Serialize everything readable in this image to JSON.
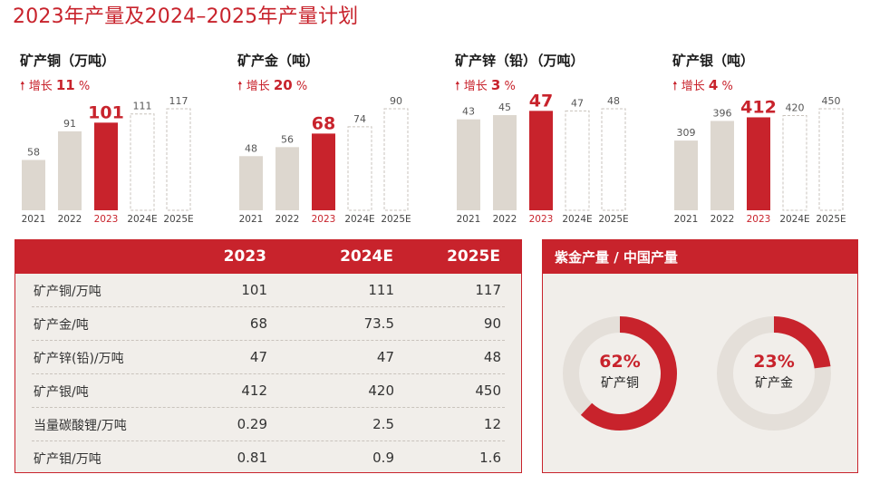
{
  "page": {
    "title": "2023年产量及2024–2025年产量计划"
  },
  "growth_prefix": "增长",
  "colors": {
    "accent": "#c8232c",
    "history_bar": "#ddd7cf",
    "donut_track": "#e4dfd9",
    "panel_bg": "#f1eeea"
  },
  "chart_data": [
    {
      "type": "bar",
      "title": "矿产铜（万吨）",
      "growth": "11",
      "growth_unit": "%",
      "categories": [
        "2021",
        "2022",
        "2023",
        "2024E",
        "2025E"
      ],
      "values": [
        58,
        91,
        101,
        111,
        117
      ],
      "labels": [
        "58",
        "91",
        "101",
        "111",
        "117"
      ],
      "highlight_index": 2,
      "forecast_from": 3
    },
    {
      "type": "bar",
      "title": "矿产金（吨）",
      "growth": "20",
      "growth_unit": "%",
      "categories": [
        "2021",
        "2022",
        "2023",
        "2024E",
        "2025E"
      ],
      "values": [
        48,
        56,
        68,
        74,
        90
      ],
      "labels": [
        "48",
        "56",
        "68",
        "74",
        "90"
      ],
      "highlight_index": 2,
      "forecast_from": 3
    },
    {
      "type": "bar",
      "title": "矿产锌（铅）（万吨）",
      "growth": "3",
      "growth_unit": "%",
      "categories": [
        "2021",
        "2022",
        "2023",
        "2024E",
        "2025E"
      ],
      "values": [
        43,
        45,
        47,
        47,
        48
      ],
      "labels": [
        "43",
        "45",
        "47",
        "47",
        "48"
      ],
      "highlight_index": 2,
      "forecast_from": 3
    },
    {
      "type": "bar",
      "title": "矿产银（吨）",
      "growth": "4",
      "growth_unit": "%",
      "categories": [
        "2021",
        "2022",
        "2023",
        "2024E",
        "2025E"
      ],
      "values": [
        309,
        396,
        412,
        420,
        450
      ],
      "labels": [
        "309",
        "396",
        "412",
        "420",
        "450"
      ],
      "highlight_index": 2,
      "forecast_from": 3
    },
    {
      "type": "pie",
      "title": "紫金产量 / 中国产量",
      "series": [
        {
          "name": "矿产铜",
          "value": 62,
          "label": "62%"
        },
        {
          "name": "矿产金",
          "value": 23,
          "label": "23%"
        }
      ]
    }
  ],
  "table": {
    "headers": [
      "",
      "2023",
      "2024E",
      "2025E"
    ],
    "rows": [
      {
        "name": "矿产铜/万吨",
        "v2023": "101",
        "v2024": "111",
        "v2025": "117"
      },
      {
        "name": "矿产金/吨",
        "v2023": "68",
        "v2024": "73.5",
        "v2025": "90"
      },
      {
        "name": "矿产锌(铅)/万吨",
        "v2023": "47",
        "v2024": "47",
        "v2025": "48"
      },
      {
        "name": "矿产银/吨",
        "v2023": "412",
        "v2024": "420",
        "v2025": "450"
      },
      {
        "name": "当量碳酸锂/万吨",
        "v2023": "0.29",
        "v2024": "2.5",
        "v2025": "12"
      },
      {
        "name": "矿产钼/万吨",
        "v2023": "0.81",
        "v2024": "0.9",
        "v2025": "1.6"
      }
    ]
  }
}
